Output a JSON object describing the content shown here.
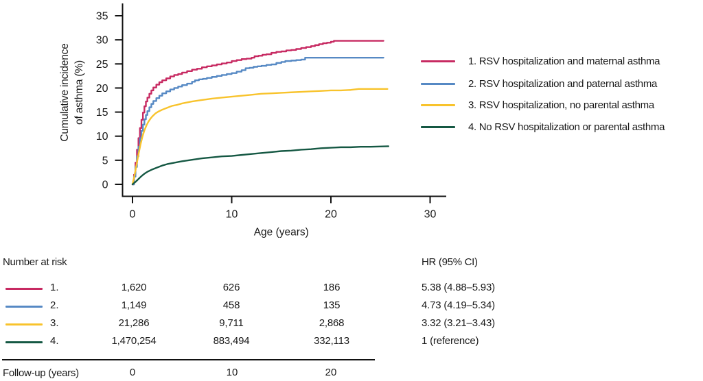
{
  "figure": {
    "background": "#ffffff",
    "text_color": "#1a1a1a",
    "axis_color": "#111111"
  },
  "chart_data": {
    "type": "line",
    "title": "",
    "xlabel": "Age (years)",
    "ylabel": "Cumulative incidence of asthma (%)",
    "ylabel_lines": [
      "Cumulative incidence",
      "of asthma (%)"
    ],
    "xlim": [
      0,
      30
    ],
    "ylim": [
      0,
      35
    ],
    "xticks": [
      0,
      10,
      20,
      30
    ],
    "yticks": [
      0,
      5,
      10,
      15,
      20,
      25,
      30,
      35
    ],
    "grid": false,
    "legend_position": "right",
    "series": [
      {
        "name": "1. RSV hospitalization and maternal asthma",
        "color": "#C72A62",
        "step": true,
        "points": [
          [
            0,
            0
          ],
          [
            0.15,
            2
          ],
          [
            0.3,
            4.5
          ],
          [
            0.45,
            7.2
          ],
          [
            0.6,
            9.6
          ],
          [
            0.75,
            11.7
          ],
          [
            0.9,
            13.4
          ],
          [
            1.05,
            14.9
          ],
          [
            1.2,
            16.2
          ],
          [
            1.35,
            17.2
          ],
          [
            1.5,
            18.0
          ],
          [
            1.7,
            18.8
          ],
          [
            1.9,
            19.5
          ],
          [
            2.1,
            20.1
          ],
          [
            2.4,
            20.7
          ],
          [
            2.7,
            21.2
          ],
          [
            3.0,
            21.6
          ],
          [
            3.4,
            22.0
          ],
          [
            3.8,
            22.4
          ],
          [
            4.2,
            22.7
          ],
          [
            4.6,
            22.9
          ],
          [
            5.0,
            23.2
          ],
          [
            5.5,
            23.5
          ],
          [
            6.0,
            23.8
          ],
          [
            6.5,
            24.0
          ],
          [
            7.0,
            24.3
          ],
          [
            7.5,
            24.5
          ],
          [
            8.0,
            24.7
          ],
          [
            8.5,
            24.9
          ],
          [
            9.0,
            25.1
          ],
          [
            9.5,
            25.3
          ],
          [
            10.0,
            25.6
          ],
          [
            10.5,
            25.8
          ],
          [
            11.0,
            26.0
          ],
          [
            11.5,
            26.1
          ],
          [
            12.0,
            26.3
          ],
          [
            12.3,
            26.6
          ],
          [
            12.7,
            26.7
          ],
          [
            13.1,
            26.9
          ],
          [
            13.5,
            27.0
          ],
          [
            14.0,
            27.3
          ],
          [
            14.5,
            27.5
          ],
          [
            15.0,
            27.6
          ],
          [
            15.5,
            27.8
          ],
          [
            16.0,
            27.9
          ],
          [
            16.5,
            28.1
          ],
          [
            17.0,
            28.3
          ],
          [
            17.5,
            28.5
          ],
          [
            18.0,
            28.7
          ],
          [
            18.4,
            28.9
          ],
          [
            18.8,
            29.1
          ],
          [
            19.2,
            29.3
          ],
          [
            19.6,
            29.4
          ],
          [
            20.0,
            29.6
          ],
          [
            20.3,
            29.8
          ],
          [
            25.3,
            29.8
          ]
        ]
      },
      {
        "name": "2. RSV hospitalization and paternal asthma",
        "color": "#5689C4",
        "step": true,
        "points": [
          [
            0,
            0
          ],
          [
            0.15,
            1.6
          ],
          [
            0.3,
            3.6
          ],
          [
            0.45,
            5.8
          ],
          [
            0.6,
            7.8
          ],
          [
            0.75,
            9.6
          ],
          [
            0.9,
            11.1
          ],
          [
            1.05,
            12.4
          ],
          [
            1.2,
            13.5
          ],
          [
            1.35,
            14.4
          ],
          [
            1.5,
            15.2
          ],
          [
            1.7,
            16.0
          ],
          [
            1.9,
            16.7
          ],
          [
            2.1,
            17.3
          ],
          [
            2.4,
            17.9
          ],
          [
            2.7,
            18.4
          ],
          [
            3.0,
            18.9
          ],
          [
            3.4,
            19.3
          ],
          [
            3.8,
            19.7
          ],
          [
            4.2,
            20.0
          ],
          [
            4.6,
            20.3
          ],
          [
            5.0,
            20.6
          ],
          [
            5.5,
            20.9
          ],
          [
            6.0,
            21.3
          ],
          [
            6.3,
            21.6
          ],
          [
            6.7,
            21.8
          ],
          [
            7.1,
            21.9
          ],
          [
            7.5,
            22.1
          ],
          [
            8.0,
            22.3
          ],
          [
            8.5,
            22.5
          ],
          [
            9.0,
            22.7
          ],
          [
            9.5,
            22.9
          ],
          [
            10.0,
            23.1
          ],
          [
            10.5,
            23.4
          ],
          [
            11.0,
            23.7
          ],
          [
            11.4,
            24.1
          ],
          [
            11.8,
            24.2
          ],
          [
            12.2,
            24.4
          ],
          [
            12.6,
            24.5
          ],
          [
            13.0,
            24.6
          ],
          [
            13.5,
            24.8
          ],
          [
            14.0,
            24.9
          ],
          [
            14.5,
            25.2
          ],
          [
            15.0,
            25.4
          ],
          [
            15.4,
            25.6
          ],
          [
            16.0,
            25.7
          ],
          [
            16.5,
            25.8
          ],
          [
            17.0,
            25.9
          ],
          [
            17.4,
            26.3
          ],
          [
            25.3,
            26.3
          ]
        ]
      },
      {
        "name": "3. RSV hospitalization, no parental asthma",
        "color": "#F8C32C",
        "step": false,
        "points": [
          [
            0,
            0
          ],
          [
            0.2,
            1.8
          ],
          [
            0.4,
            4.0
          ],
          [
            0.6,
            6.2
          ],
          [
            0.8,
            8.2
          ],
          [
            1.0,
            9.9
          ],
          [
            1.2,
            11.2
          ],
          [
            1.4,
            12.2
          ],
          [
            1.6,
            13.0
          ],
          [
            1.8,
            13.6
          ],
          [
            2.0,
            14.1
          ],
          [
            2.3,
            14.7
          ],
          [
            2.6,
            15.1
          ],
          [
            3.0,
            15.5
          ],
          [
            3.5,
            15.9
          ],
          [
            4.0,
            16.3
          ],
          [
            4.5,
            16.5
          ],
          [
            5.0,
            16.8
          ],
          [
            6.0,
            17.2
          ],
          [
            7.0,
            17.5
          ],
          [
            8.0,
            17.8
          ],
          [
            9.0,
            18.0
          ],
          [
            10.0,
            18.2
          ],
          [
            11.0,
            18.4
          ],
          [
            12.0,
            18.6
          ],
          [
            13.0,
            18.8
          ],
          [
            14.0,
            18.9
          ],
          [
            15.0,
            19.0
          ],
          [
            16.0,
            19.1
          ],
          [
            17.0,
            19.2
          ],
          [
            18.0,
            19.3
          ],
          [
            19.0,
            19.4
          ],
          [
            20.0,
            19.5
          ],
          [
            21.0,
            19.5
          ],
          [
            22.0,
            19.6
          ],
          [
            22.8,
            19.8
          ],
          [
            25.7,
            19.8
          ]
        ]
      },
      {
        "name": "4. No RSV hospitalization or parental asthma",
        "color": "#155843",
        "step": false,
        "points": [
          [
            0,
            0
          ],
          [
            0.3,
            0.5
          ],
          [
            0.6,
            1.1
          ],
          [
            0.9,
            1.7
          ],
          [
            1.2,
            2.2
          ],
          [
            1.5,
            2.6
          ],
          [
            2.0,
            3.1
          ],
          [
            2.5,
            3.5
          ],
          [
            3.0,
            3.9
          ],
          [
            3.5,
            4.2
          ],
          [
            4.0,
            4.4
          ],
          [
            4.5,
            4.6
          ],
          [
            5.0,
            4.8
          ],
          [
            6.0,
            5.1
          ],
          [
            7.0,
            5.4
          ],
          [
            8.0,
            5.6
          ],
          [
            9.0,
            5.8
          ],
          [
            10.0,
            5.9
          ],
          [
            11.0,
            6.1
          ],
          [
            12.0,
            6.3
          ],
          [
            13.0,
            6.5
          ],
          [
            14.0,
            6.7
          ],
          [
            15.0,
            6.9
          ],
          [
            16.0,
            7.0
          ],
          [
            17.0,
            7.2
          ],
          [
            18.0,
            7.3
          ],
          [
            19.0,
            7.5
          ],
          [
            20.0,
            7.6
          ],
          [
            21.0,
            7.7
          ],
          [
            22.0,
            7.7
          ],
          [
            23.0,
            7.8
          ],
          [
            24.0,
            7.8
          ],
          [
            25.8,
            7.9
          ]
        ]
      }
    ]
  },
  "risk_table": {
    "header": "Number at risk",
    "hr_header": "HR (95% CI)",
    "rows": [
      {
        "label": "1.",
        "color": "#C72A62",
        "values": [
          "1,620",
          "626",
          "186"
        ],
        "hr": "5.38 (4.88–5.93)"
      },
      {
        "label": "2.",
        "color": "#5689C4",
        "values": [
          "1,149",
          "458",
          "135"
        ],
        "hr": "4.73 (4.19–5.34)"
      },
      {
        "label": "3.",
        "color": "#F8C32C",
        "values": [
          "21,286",
          "9,711",
          "2,868"
        ],
        "hr": "3.32 (3.21–3.43)"
      },
      {
        "label": "4.",
        "color": "#155843",
        "values": [
          "1,470,254",
          "883,494",
          "332,113"
        ],
        "hr": "1 (reference)"
      }
    ],
    "footer_label": "Follow-up (years)",
    "footer_values": [
      "0",
      "10",
      "20"
    ]
  }
}
